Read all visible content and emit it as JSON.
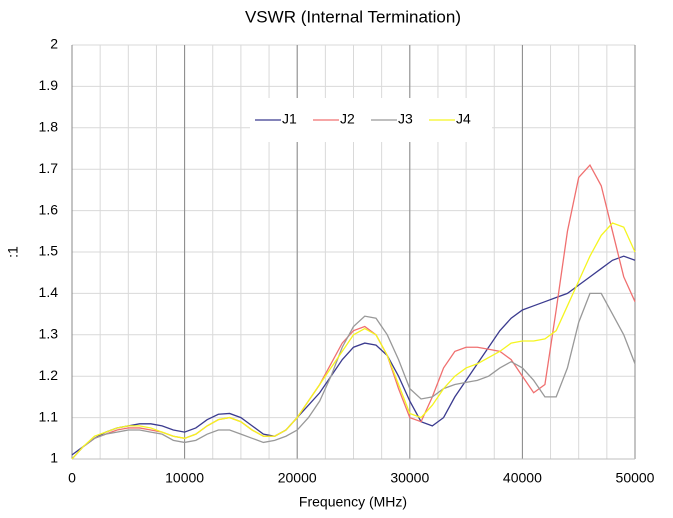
{
  "chart_data": {
    "type": "line",
    "title": "VSWR (Internal Termination)",
    "x_label": "Frequency (MHz)",
    "y_label": ":1",
    "x": [
      0,
      1000,
      2000,
      3000,
      4000,
      5000,
      6000,
      7000,
      8000,
      9000,
      10000,
      11000,
      12000,
      13000,
      14000,
      15000,
      16000,
      17000,
      18000,
      19000,
      20000,
      21000,
      22000,
      23000,
      24000,
      25000,
      26000,
      27000,
      28000,
      29000,
      30000,
      31000,
      32000,
      33000,
      34000,
      35000,
      36000,
      37000,
      38000,
      39000,
      40000,
      41000,
      42000,
      43000,
      44000,
      45000,
      46000,
      47000,
      48000,
      49000,
      50000
    ],
    "series": [
      {
        "name": "J1",
        "color": "#3b3b8f",
        "values": [
          1.01,
          1.03,
          1.05,
          1.065,
          1.075,
          1.08,
          1.085,
          1.085,
          1.08,
          1.07,
          1.065,
          1.075,
          1.095,
          1.108,
          1.11,
          1.1,
          1.08,
          1.06,
          1.055,
          1.07,
          1.1,
          1.13,
          1.16,
          1.2,
          1.24,
          1.27,
          1.28,
          1.275,
          1.25,
          1.2,
          1.14,
          1.09,
          1.08,
          1.1,
          1.15,
          1.19,
          1.23,
          1.27,
          1.31,
          1.34,
          1.36,
          1.37,
          1.38,
          1.39,
          1.4,
          1.42,
          1.44,
          1.46,
          1.48,
          1.49,
          1.48
        ]
      },
      {
        "name": "J2",
        "color": "#f07070",
        "values": [
          1.0,
          1.03,
          1.05,
          1.06,
          1.07,
          1.075,
          1.075,
          1.07,
          1.065,
          1.055,
          1.05,
          1.06,
          1.08,
          1.095,
          1.1,
          1.09,
          1.07,
          1.055,
          1.055,
          1.07,
          1.1,
          1.14,
          1.18,
          1.23,
          1.28,
          1.31,
          1.32,
          1.3,
          1.25,
          1.17,
          1.1,
          1.09,
          1.15,
          1.22,
          1.26,
          1.27,
          1.27,
          1.265,
          1.26,
          1.24,
          1.2,
          1.16,
          1.18,
          1.36,
          1.55,
          1.68,
          1.71,
          1.66,
          1.55,
          1.44,
          1.38
        ]
      },
      {
        "name": "J3",
        "color": "#999999",
        "values": [
          1.0,
          1.03,
          1.05,
          1.06,
          1.065,
          1.07,
          1.07,
          1.065,
          1.06,
          1.045,
          1.04,
          1.045,
          1.06,
          1.07,
          1.07,
          1.06,
          1.05,
          1.04,
          1.045,
          1.055,
          1.07,
          1.1,
          1.14,
          1.2,
          1.27,
          1.32,
          1.345,
          1.34,
          1.3,
          1.24,
          1.17,
          1.145,
          1.15,
          1.17,
          1.18,
          1.185,
          1.19,
          1.2,
          1.22,
          1.235,
          1.22,
          1.19,
          1.15,
          1.15,
          1.22,
          1.33,
          1.4,
          1.4,
          1.35,
          1.3,
          1.23
        ]
      },
      {
        "name": "J4",
        "color": "#f5f520",
        "values": [
          1.0,
          1.03,
          1.055,
          1.065,
          1.075,
          1.08,
          1.08,
          1.075,
          1.065,
          1.055,
          1.05,
          1.06,
          1.08,
          1.095,
          1.1,
          1.09,
          1.07,
          1.055,
          1.055,
          1.07,
          1.1,
          1.14,
          1.18,
          1.22,
          1.26,
          1.3,
          1.315,
          1.3,
          1.25,
          1.18,
          1.11,
          1.1,
          1.13,
          1.17,
          1.2,
          1.22,
          1.23,
          1.245,
          1.26,
          1.28,
          1.285,
          1.285,
          1.29,
          1.31,
          1.37,
          1.43,
          1.49,
          1.54,
          1.57,
          1.56,
          1.5
        ]
      }
    ],
    "xlim": [
      0,
      50000
    ],
    "xticks": [
      0,
      10000,
      20000,
      30000,
      40000,
      50000
    ],
    "x_minor_step": 2500,
    "ylim": [
      1,
      2
    ],
    "yticks": [
      1,
      1.1,
      1.2,
      1.3,
      1.4,
      1.5,
      1.6,
      1.7,
      1.8,
      1.9,
      2
    ],
    "grid": true,
    "legend": "top"
  }
}
